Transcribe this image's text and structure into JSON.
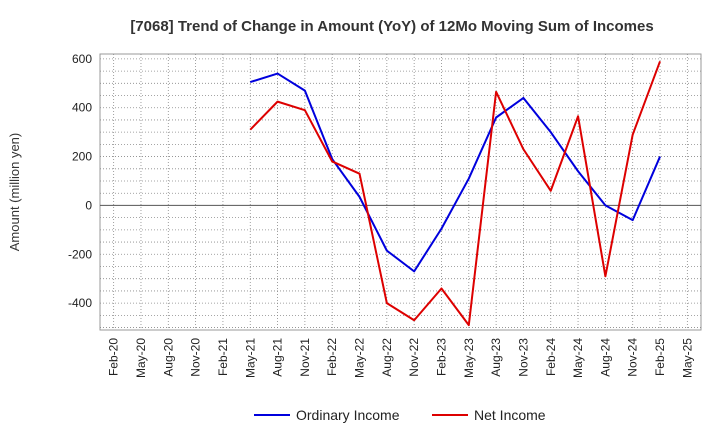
{
  "chart_data": {
    "type": "line",
    "title": "[7068]  Trend of Change in Amount (YoY) of 12Mo Moving Sum of Incomes",
    "ylabel": "Amount (million yen)",
    "xlabel": "",
    "ylim": [
      -510,
      620
    ],
    "yticks": [
      -400,
      -200,
      0,
      200,
      400,
      600
    ],
    "ytick_labels": [
      "-400",
      "-200",
      "0",
      "200",
      "400",
      "600"
    ],
    "x": [
      "Feb-20",
      "May-20",
      "Aug-20",
      "Nov-20",
      "Feb-21",
      "May-21",
      "Aug-21",
      "Nov-21",
      "Feb-22",
      "May-22",
      "Aug-22",
      "Nov-22",
      "Feb-23",
      "May-23",
      "Aug-23",
      "Nov-23",
      "Feb-24",
      "May-24",
      "Aug-24",
      "Nov-24",
      "Feb-25",
      "May-25"
    ],
    "grid": true,
    "legend_position": "bottom",
    "series": [
      {
        "name": "Ordinary Income",
        "color": "#0000dd",
        "values": [
          null,
          null,
          null,
          null,
          null,
          505,
          540,
          470,
          190,
          35,
          -185,
          -270,
          -95,
          110,
          360,
          440,
          300,
          140,
          0,
          -60,
          200,
          null
        ]
      },
      {
        "name": "Net Income",
        "color": "#dd0000",
        "values": [
          null,
          null,
          null,
          null,
          null,
          310,
          425,
          390,
          180,
          130,
          -400,
          -470,
          -340,
          -490,
          465,
          230,
          60,
          365,
          -290,
          290,
          590,
          null
        ]
      }
    ]
  }
}
